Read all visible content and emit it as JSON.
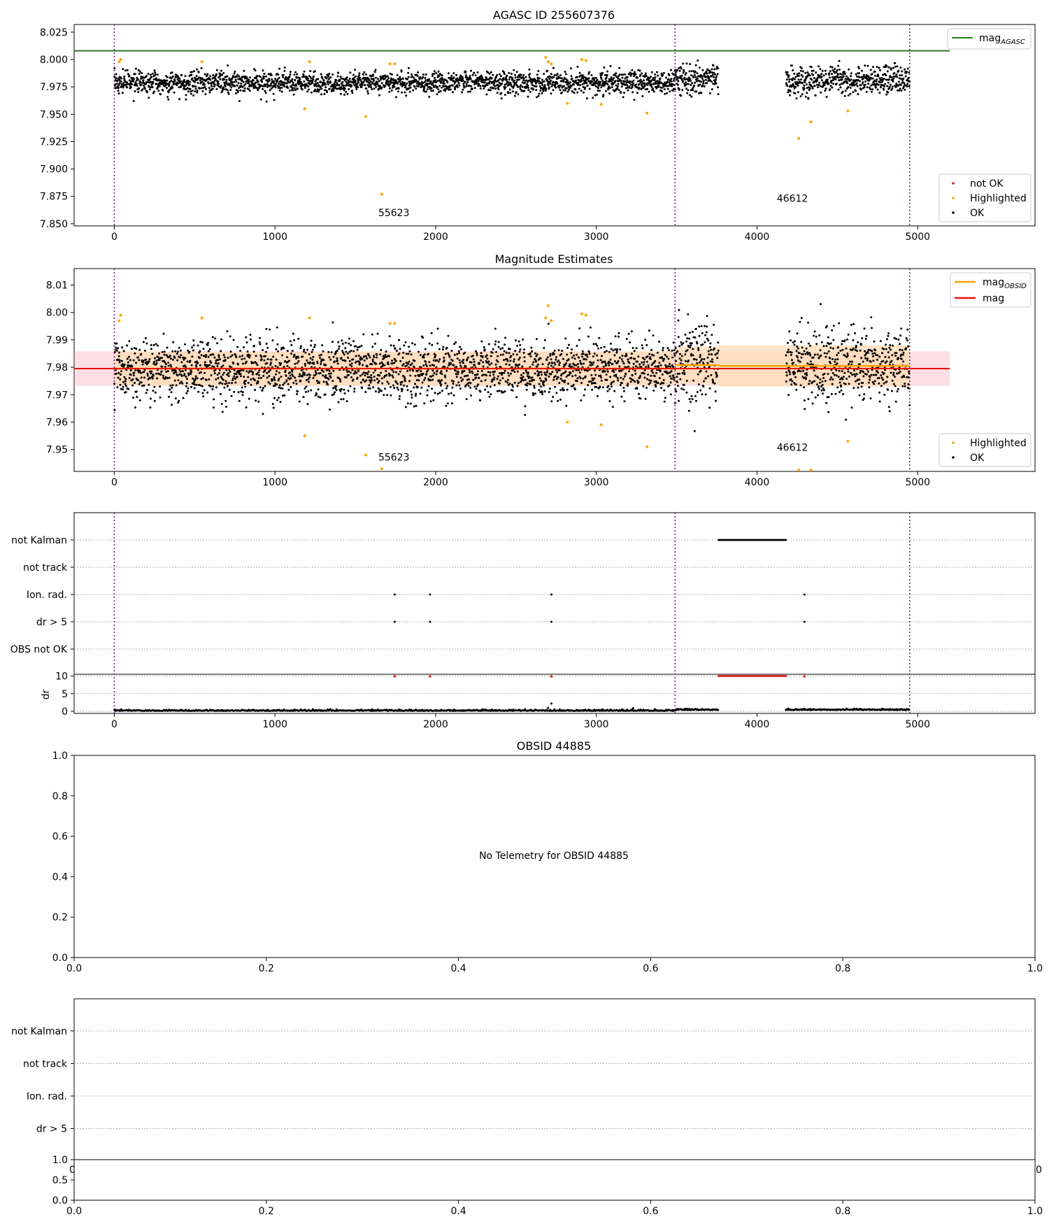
{
  "colors": {
    "ok": "#000000",
    "highlighted": "#ffa500",
    "not_ok": "#d62728",
    "agasc_mag": "#2a7a1e",
    "mag_line": "#e8120c",
    "mag_band": "#f4a3ae",
    "obsid_mag": "#ffa500",
    "obsid_band": "#ffdcb4",
    "boundary": "#7a1a8c",
    "grid": "#b0b0b0"
  },
  "chart_data": [
    {
      "id": "panel1",
      "type": "scatter",
      "title": "AGASC ID 255607376",
      "xlim": [
        -250,
        5730
      ],
      "ylim": [
        7.848,
        8.032
      ],
      "xticks": [
        0,
        1000,
        2000,
        3000,
        4000,
        5000
      ],
      "yticks": [
        7.85,
        7.875,
        7.9,
        7.925,
        7.95,
        7.975,
        8.0,
        8.025
      ],
      "ytick_labels": [
        "7.850",
        "7.875",
        "7.900",
        "7.925",
        "7.950",
        "7.975",
        "8.000",
        "8.025"
      ],
      "hlines": [
        {
          "y": 8.008,
          "x0": -250,
          "x1": 5200,
          "color_key": "agasc_mag"
        }
      ],
      "boundaries": [
        0,
        3490,
        4950
      ],
      "segments": [
        {
          "x0": 0,
          "x1": 3490,
          "mean": 7.979,
          "sd": 0.005,
          "density": 1.0
        },
        {
          "x0": 3490,
          "x1": 3760,
          "mean": 7.982,
          "sd": 0.007,
          "density": 1.0
        },
        {
          "x0": 4180,
          "x1": 4950,
          "mean": 7.98,
          "sd": 0.0065,
          "density": 1.0
        }
      ],
      "highlighted": [
        [
          30,
          7.998
        ],
        [
          40,
          8.0
        ],
        [
          545,
          7.998
        ],
        [
          1185,
          7.955
        ],
        [
          1215,
          7.998
        ],
        [
          1565,
          7.948
        ],
        [
          1665,
          7.877
        ],
        [
          1715,
          7.996
        ],
        [
          1745,
          7.996
        ],
        [
          2685,
          8.002
        ],
        [
          2700,
          7.998
        ],
        [
          2720,
          7.996
        ],
        [
          2820,
          7.96
        ],
        [
          2910,
          8.0
        ],
        [
          2935,
          7.999
        ],
        [
          3030,
          7.959
        ],
        [
          3315,
          7.951
        ],
        [
          4260,
          7.928
        ],
        [
          4335,
          7.943
        ],
        [
          4565,
          7.953
        ]
      ],
      "annotations": [
        {
          "text": "55623",
          "x": 1740,
          "y": 7.857
        },
        {
          "text": "46612",
          "x": 4220,
          "y": 7.87
        }
      ],
      "legends": [
        {
          "loc": "upper-right",
          "entries": [
            {
              "label": "mag",
              "sub": "AGASC",
              "kind": "line",
              "color_key": "agasc_mag"
            }
          ]
        },
        {
          "loc": "lower-right",
          "entries": [
            {
              "label": "not OK",
              "kind": "dot",
              "color_key": "not_ok"
            },
            {
              "label": "Highlighted",
              "kind": "dot",
              "color_key": "highlighted"
            },
            {
              "label": "OK",
              "kind": "dot",
              "color_key": "ok"
            }
          ]
        }
      ]
    },
    {
      "id": "panel2",
      "type": "scatter",
      "title": "Magnitude Estimates",
      "xlim": [
        -250,
        5730
      ],
      "ylim": [
        7.942,
        8.016
      ],
      "xticks": [
        0,
        1000,
        2000,
        3000,
        4000,
        5000
      ],
      "yticks": [
        7.95,
        7.96,
        7.97,
        7.98,
        7.99,
        8.0,
        8.01
      ],
      "ytick_labels": [
        "7.95",
        "7.96",
        "7.97",
        "7.98",
        "7.99",
        "8.00",
        "8.01"
      ],
      "boundaries": [
        0,
        3490,
        4950
      ],
      "mag": {
        "y": 7.9795,
        "lo": 7.9732,
        "hi": 7.9858,
        "x0": -250,
        "x1": 5200
      },
      "obsid_mags": [
        {
          "x0": 0,
          "x1": 3490,
          "y": 7.9795,
          "lo": 7.9733,
          "hi": 7.9857
        },
        {
          "x0": 3490,
          "x1": 3760,
          "y": 7.9808,
          "lo": 7.974,
          "hi": 7.9876
        },
        {
          "x0": 3760,
          "x1": 4950,
          "y": 7.9805,
          "lo": 7.973,
          "hi": 7.988
        }
      ],
      "segments": [
        {
          "x0": 0,
          "x1": 3490,
          "mean": 7.979,
          "sd": 0.0055,
          "density": 1.0
        },
        {
          "x0": 3490,
          "x1": 3760,
          "mean": 7.982,
          "sd": 0.0075,
          "density": 1.0
        },
        {
          "x0": 4180,
          "x1": 4950,
          "mean": 7.98,
          "sd": 0.007,
          "density": 1.0
        }
      ],
      "highlighted": [
        [
          30,
          7.997
        ],
        [
          40,
          7.999
        ],
        [
          545,
          7.998
        ],
        [
          1185,
          7.955
        ],
        [
          1215,
          7.998
        ],
        [
          1565,
          7.948
        ],
        [
          1665,
          7.943
        ],
        [
          1715,
          7.996
        ],
        [
          1745,
          7.996
        ],
        [
          2685,
          7.998
        ],
        [
          2700,
          8.0025
        ],
        [
          2720,
          7.997
        ],
        [
          2820,
          7.96
        ],
        [
          2910,
          7.9995
        ],
        [
          2935,
          7.999
        ],
        [
          3030,
          7.959
        ],
        [
          3315,
          7.951
        ],
        [
          4260,
          7.9425
        ],
        [
          4335,
          7.9425
        ],
        [
          4565,
          7.953
        ]
      ],
      "annotations": [
        {
          "text": "55623",
          "x": 1740,
          "y": 7.946
        },
        {
          "text": "46612",
          "x": 4220,
          "y": 7.9495
        }
      ],
      "legends": [
        {
          "loc": "upper-right",
          "entries": [
            {
              "label": "mag",
              "sub": "OBSID",
              "kind": "line",
              "color_key": "obsid_mag"
            },
            {
              "label": "mag",
              "kind": "line",
              "color_key": "mag_line"
            }
          ]
        },
        {
          "loc": "lower-right",
          "entries": [
            {
              "label": "Highlighted",
              "kind": "dot",
              "color_key": "highlighted"
            },
            {
              "label": "OK",
              "kind": "dot",
              "color_key": "ok"
            }
          ]
        }
      ]
    },
    {
      "id": "panel3",
      "type": "scatter",
      "xlim": [
        -250,
        5730
      ],
      "xticks": [
        0,
        1000,
        2000,
        3000,
        4000,
        5000
      ],
      "boundaries": [
        0,
        3490,
        4950
      ],
      "flag_labels": [
        "not Kalman",
        "not track",
        "Ion. rad.",
        "dr > 5",
        "OBS not OK"
      ],
      "flag_marks": [
        {
          "flag": "not Kalman",
          "x0": 3760,
          "x1": 4180
        },
        {
          "flag": "Ion. rad.",
          "points": [
            1745,
            1965,
            2720,
            4295
          ]
        },
        {
          "flag": "dr > 5",
          "points": [
            1745,
            1965,
            2720,
            4295
          ]
        }
      ],
      "dr": {
        "ylabel": "dr",
        "ylim": [
          0,
          10.5
        ],
        "yticks": [
          0,
          5,
          10
        ],
        "not_ok_points": [
          1745,
          1965,
          2720,
          4295
        ],
        "not_ok_range": [
          3760,
          4180
        ],
        "segments": [
          [
            0,
            3490
          ],
          [
            3490,
            3760
          ],
          [
            4180,
            4950
          ]
        ],
        "spikes": [
          [
            2700,
            1.0
          ],
          [
            2720,
            2.2
          ],
          [
            3230,
            0.9
          ]
        ]
      }
    },
    {
      "id": "panel4",
      "type": "scatter",
      "title": "OBSID 44885",
      "xlim": [
        0,
        1
      ],
      "ylim": [
        0,
        1
      ],
      "xticks": [
        0.0,
        0.2,
        0.4,
        0.6,
        0.8,
        1.0
      ],
      "tick_labels": [
        "0.0",
        "0.2",
        "0.4",
        "0.6",
        "0.8",
        "1.0"
      ],
      "yticks": [
        0.0,
        0.2,
        0.4,
        0.6,
        0.8,
        1.0
      ],
      "message": "No Telemetry for OBSID 44885"
    },
    {
      "id": "panel5",
      "type": "scatter",
      "flag_labels": [
        "not Kalman",
        "not track",
        "Ion. rad.",
        "dr > 5"
      ],
      "clipped_tick_left": "0",
      "clipped_tick_right": "0",
      "sub": {
        "xlim": [
          0,
          1
        ],
        "ylim": [
          0,
          1
        ],
        "xticks": [
          0.0,
          0.2,
          0.4,
          0.6,
          0.8,
          1.0
        ],
        "tick_labels": [
          "0.0",
          "0.2",
          "0.4",
          "0.6",
          "0.8",
          "1.0"
        ],
        "yticks": [
          0.0,
          0.5,
          1.0
        ],
        "ytick_labels": [
          "0.0",
          "0.5",
          "1.0"
        ]
      }
    }
  ]
}
